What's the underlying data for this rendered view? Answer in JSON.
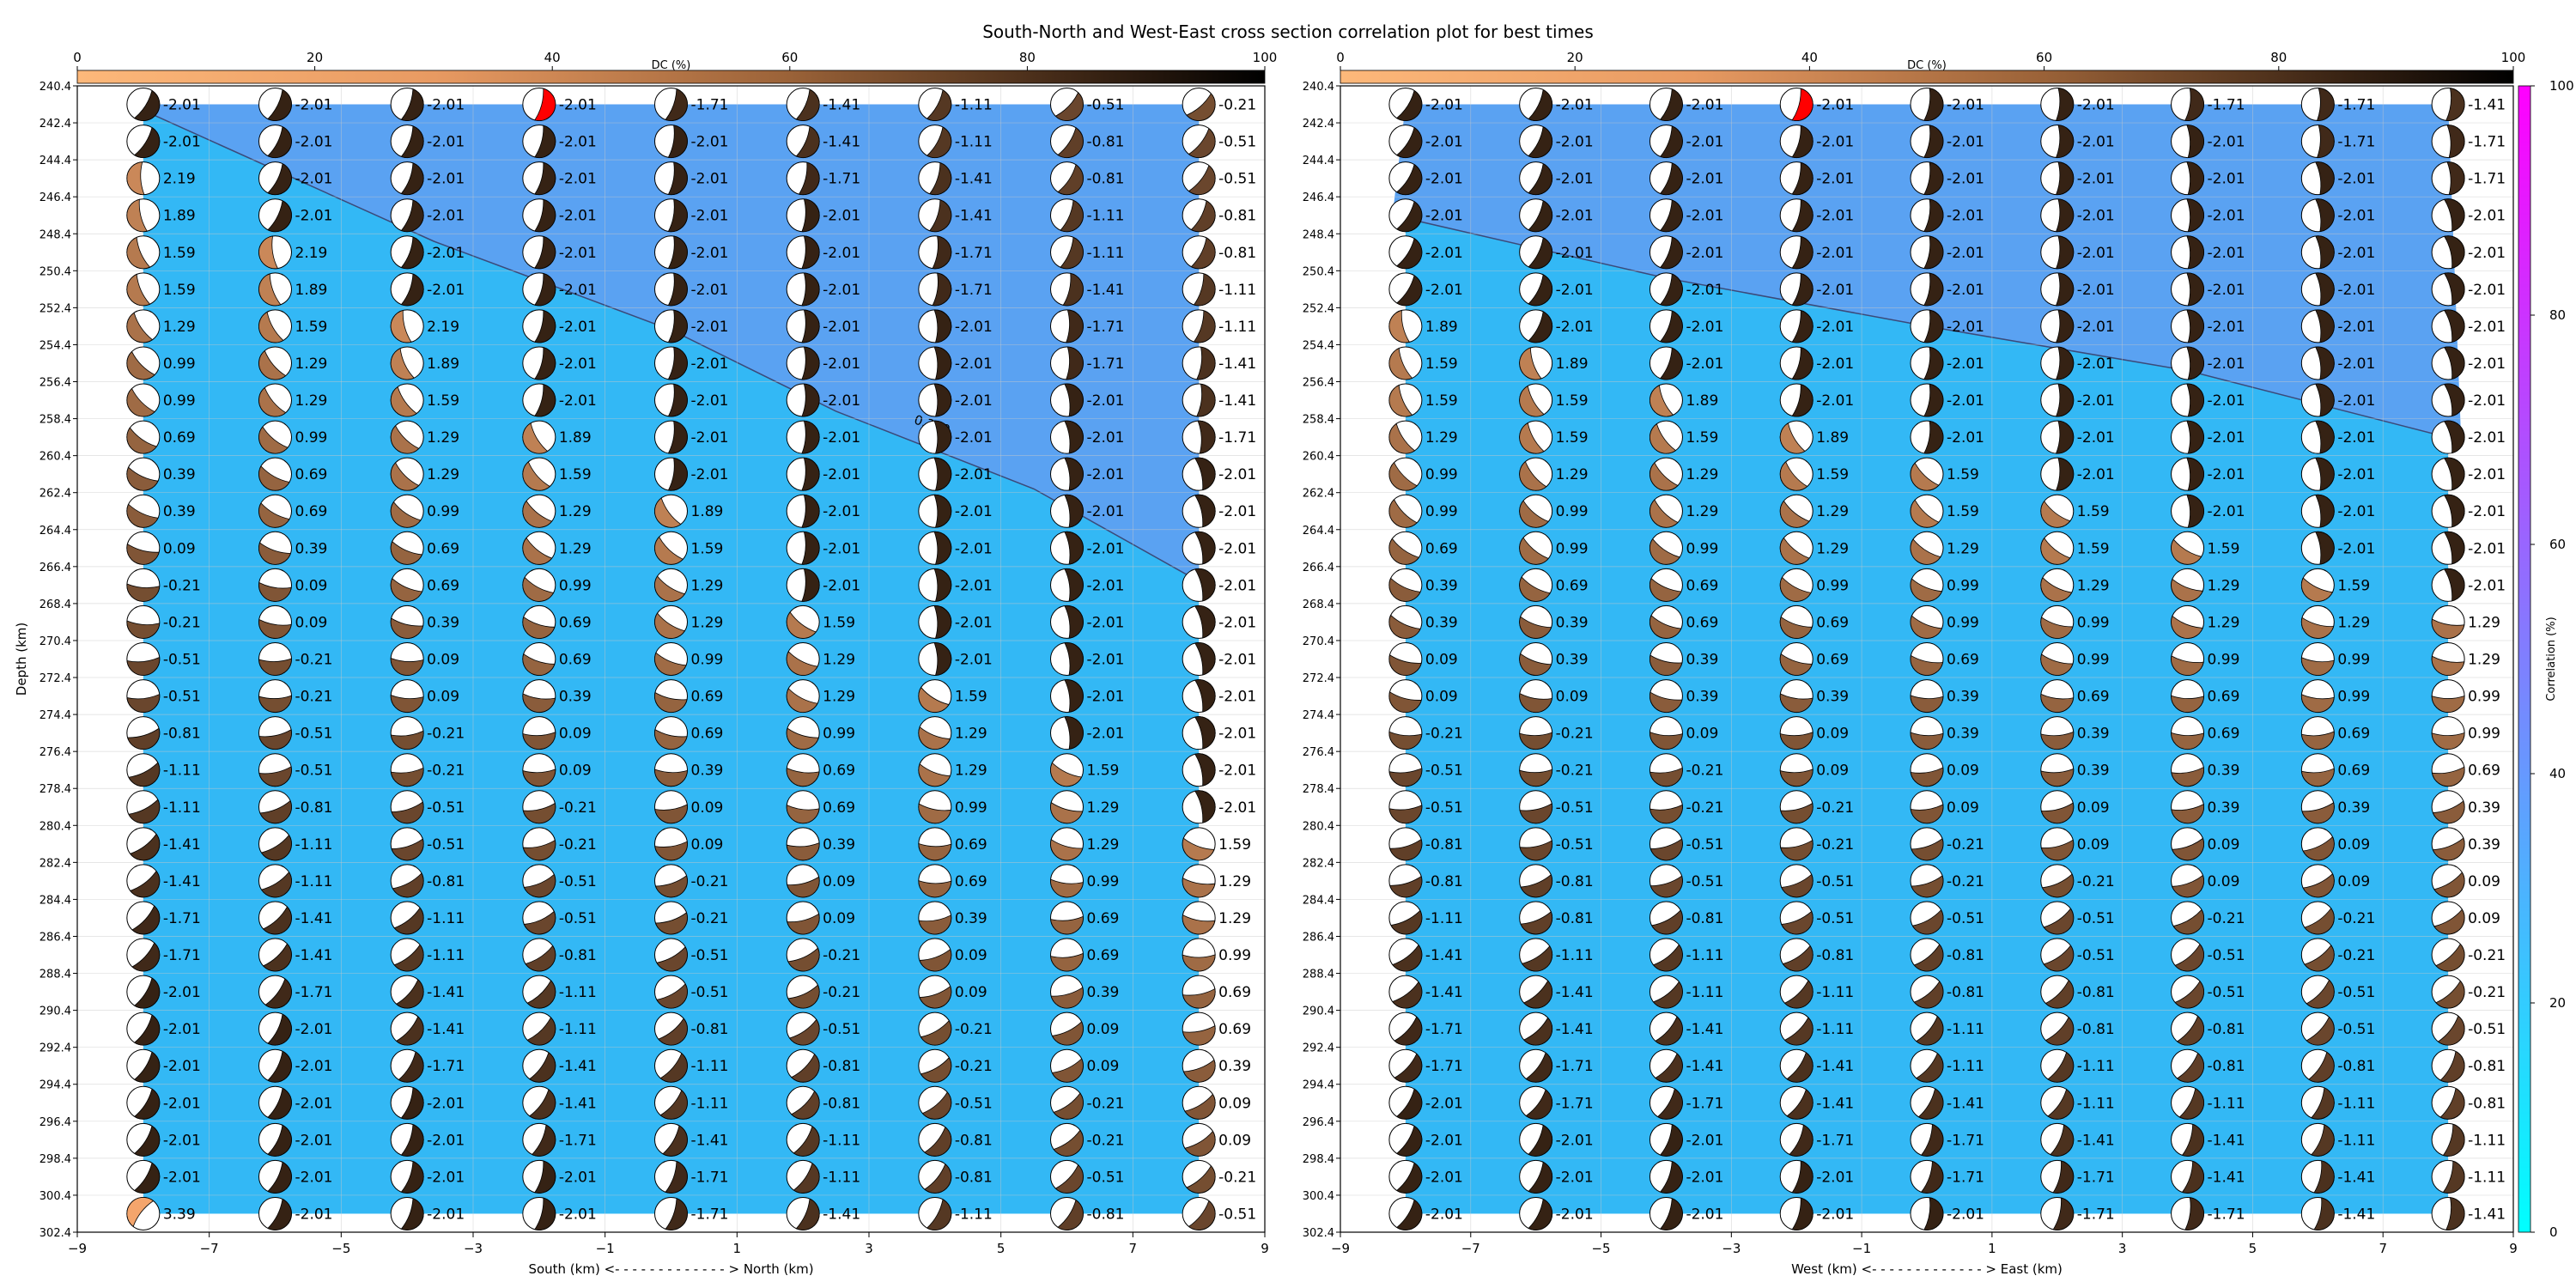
{
  "title": "South-North and West-East cross section correlation plot for best times",
  "colors": {
    "background_low": "#33b8f5",
    "background_high": "#5aa2f2",
    "highlight_beachball": "#ff0000",
    "contour_line": "#3b4a7a"
  },
  "chart_data": [
    {
      "type": "heatmap",
      "panel": "south-north",
      "xlabel": "South (km) <- - - - - - - - - - - - - > North (km)",
      "ylabel": "Depth (km)",
      "xlim": [
        -9,
        9
      ],
      "ylim": [
        302.4,
        240.4
      ],
      "x_ticks": [
        "−9",
        "−7",
        "−5",
        "−3",
        "−1",
        "1",
        "3",
        "5",
        "7",
        "9"
      ],
      "dc_colorbar": {
        "label": "DC (%)",
        "ticks": [
          "0",
          "20",
          "40",
          "60",
          "80",
          "100"
        ]
      },
      "contour_label": "0.300",
      "contour_line": [
        [
          -8.2,
          241.4
        ],
        [
          -3.6,
          248.8
        ],
        [
          0,
          253.6
        ],
        [
          2.5,
          258.0
        ],
        [
          5.5,
          262.2
        ],
        [
          8.0,
          267.2
        ]
      ],
      "columns_x": [
        -8,
        -6,
        -4,
        -2,
        0,
        2,
        4,
        6,
        8
      ],
      "rows_depth": [
        241.4,
        243.4,
        245.4,
        247.4,
        249.4,
        251.4,
        253.4,
        255.4,
        257.4,
        259.4,
        261.4,
        263.4,
        265.4,
        267.4,
        269.4,
        271.4,
        273.4,
        275.4,
        277.4,
        279.4,
        281.4,
        283.4,
        285.4,
        287.4,
        289.4,
        291.4,
        293.4,
        295.4,
        297.4,
        299.4,
        301.4
      ],
      "best_cell": {
        "x": -2,
        "depth": 241.4,
        "value": "-2.01"
      },
      "values": [
        [
          "-2.01",
          "-2.01",
          "-2.01",
          "-2.01",
          "-1.71",
          "-1.41",
          "-1.11",
          "-0.51",
          "-0.21"
        ],
        [
          "-2.01",
          "-2.01",
          "-2.01",
          "-2.01",
          "-2.01",
          "-1.41",
          "-1.11",
          "-0.81",
          "-0.51"
        ],
        [
          "2.19",
          "-2.01",
          "-2.01",
          "-2.01",
          "-2.01",
          "-1.71",
          "-1.41",
          "-0.81",
          "-0.51"
        ],
        [
          "1.89",
          "-2.01",
          "-2.01",
          "-2.01",
          "-2.01",
          "-2.01",
          "-1.41",
          "-1.11",
          "-0.81"
        ],
        [
          "1.59",
          "2.19",
          "-2.01",
          "-2.01",
          "-2.01",
          "-2.01",
          "-1.71",
          "-1.11",
          "-0.81"
        ],
        [
          "1.59",
          "1.89",
          "-2.01",
          "-2.01",
          "-2.01",
          "-2.01",
          "-1.71",
          "-1.41",
          "-1.11"
        ],
        [
          "1.29",
          "1.59",
          "2.19",
          "-2.01",
          "-2.01",
          "-2.01",
          "-2.01",
          "-1.71",
          "-1.11"
        ],
        [
          "0.99",
          "1.29",
          "1.89",
          "-2.01",
          "-2.01",
          "-2.01",
          "-2.01",
          "-1.71",
          "-1.41"
        ],
        [
          "0.99",
          "1.29",
          "1.59",
          "-2.01",
          "-2.01",
          "-2.01",
          "-2.01",
          "-2.01",
          "-1.41"
        ],
        [
          "0.69",
          "0.99",
          "1.29",
          "1.89",
          "-2.01",
          "-2.01",
          "-2.01",
          "-2.01",
          "-1.71"
        ],
        [
          "0.39",
          "0.69",
          "1.29",
          "1.59",
          "-2.01",
          "-2.01",
          "-2.01",
          "-2.01",
          "-2.01"
        ],
        [
          "0.39",
          "0.69",
          "0.99",
          "1.29",
          "1.89",
          "-2.01",
          "-2.01",
          "-2.01",
          "-2.01"
        ],
        [
          "0.09",
          "0.39",
          "0.69",
          "1.29",
          "1.59",
          "-2.01",
          "-2.01",
          "-2.01",
          "-2.01"
        ],
        [
          "-0.21",
          "0.09",
          "0.69",
          "0.99",
          "1.29",
          "-2.01",
          "-2.01",
          "-2.01",
          "-2.01"
        ],
        [
          "-0.21",
          "0.09",
          "0.39",
          "0.69",
          "1.29",
          "1.59",
          "-2.01",
          "-2.01",
          "-2.01"
        ],
        [
          "-0.51",
          "-0.21",
          "0.09",
          "0.69",
          "0.99",
          "1.29",
          "-2.01",
          "-2.01",
          "-2.01"
        ],
        [
          "-0.51",
          "-0.21",
          "0.09",
          "0.39",
          "0.69",
          "1.29",
          "1.59",
          "-2.01",
          "-2.01"
        ],
        [
          "-0.81",
          "-0.51",
          "-0.21",
          "0.09",
          "0.69",
          "0.99",
          "1.29",
          "-2.01",
          "-2.01"
        ],
        [
          "-1.11",
          "-0.51",
          "-0.21",
          "0.09",
          "0.39",
          "0.69",
          "1.29",
          "1.59",
          "-2.01"
        ],
        [
          "-1.11",
          "-0.81",
          "-0.51",
          "-0.21",
          "0.09",
          "0.69",
          "0.99",
          "1.29",
          "-2.01"
        ],
        [
          "-1.41",
          "-1.11",
          "-0.51",
          "-0.21",
          "0.09",
          "0.39",
          "0.69",
          "1.29",
          "1.59"
        ],
        [
          "-1.41",
          "-1.11",
          "-0.81",
          "-0.51",
          "-0.21",
          "0.09",
          "0.69",
          "0.99",
          "1.29"
        ],
        [
          "-1.71",
          "-1.41",
          "-1.11",
          "-0.51",
          "-0.21",
          "0.09",
          "0.39",
          "0.69",
          "1.29"
        ],
        [
          "-1.71",
          "-1.41",
          "-1.11",
          "-0.81",
          "-0.51",
          "-0.21",
          "0.09",
          "0.69",
          "0.99"
        ],
        [
          "-2.01",
          "-1.71",
          "-1.41",
          "-1.11",
          "-0.51",
          "-0.21",
          "0.09",
          "0.39",
          "0.69"
        ],
        [
          "-2.01",
          "-2.01",
          "-1.41",
          "-1.11",
          "-0.81",
          "-0.51",
          "-0.21",
          "0.09",
          "0.69"
        ],
        [
          "-2.01",
          "-2.01",
          "-1.71",
          "-1.41",
          "-1.11",
          "-0.81",
          "-0.21",
          "0.09",
          "0.39"
        ],
        [
          "-2.01",
          "-2.01",
          "-2.01",
          "-1.41",
          "-1.11",
          "-0.81",
          "-0.51",
          "-0.21",
          "0.09"
        ],
        [
          "-2.01",
          "-2.01",
          "-2.01",
          "-1.71",
          "-1.41",
          "-1.11",
          "-0.81",
          "-0.21",
          "0.09"
        ],
        [
          "-2.01",
          "-2.01",
          "-2.01",
          "-2.01",
          "-1.71",
          "-1.11",
          "-0.81",
          "-0.51",
          "-0.21"
        ],
        [
          "3.39",
          "-2.01",
          "-2.01",
          "-2.01",
          "-1.71",
          "-1.41",
          "-1.11",
          "-0.81",
          "-0.51"
        ]
      ]
    },
    {
      "type": "heatmap",
      "panel": "west-east",
      "xlabel": "West (km) <- - - - - - - - - - - - - > East (km)",
      "ylabel": "",
      "xlim": [
        -9,
        9
      ],
      "ylim": [
        302.4,
        240.4
      ],
      "x_ticks": [
        "−9",
        "−7",
        "−5",
        "−3",
        "−1",
        "1",
        "3",
        "5",
        "7",
        "9"
      ],
      "dc_colorbar": {
        "label": "DC (%)",
        "ticks": [
          "0",
          "20",
          "40",
          "60",
          "80",
          "100"
        ]
      },
      "correlation_colorbar": {
        "label": "Correlation (%)",
        "ticks": [
          "0",
          "20",
          "40",
          "60",
          "80",
          "100"
        ],
        "range": [
          0,
          100
        ]
      },
      "contour_line": [
        [
          -8.2,
          247.4
        ],
        [
          -4,
          250.8
        ],
        [
          0,
          253.4
        ],
        [
          4,
          255.8
        ],
        [
          8.2,
          259.6
        ]
      ],
      "columns_x": [
        -8,
        -6,
        -4,
        -2,
        0,
        2,
        4,
        6,
        8
      ],
      "rows_depth": [
        241.4,
        243.4,
        245.4,
        247.4,
        249.4,
        251.4,
        253.4,
        255.4,
        257.4,
        259.4,
        261.4,
        263.4,
        265.4,
        267.4,
        269.4,
        271.4,
        273.4,
        275.4,
        277.4,
        279.4,
        281.4,
        283.4,
        285.4,
        287.4,
        289.4,
        291.4,
        293.4,
        295.4,
        297.4,
        299.4,
        301.4
      ],
      "best_cell": {
        "x": -2,
        "depth": 241.4,
        "value": "-2.01"
      },
      "values": [
        [
          "-2.01",
          "-2.01",
          "-2.01",
          "-2.01",
          "-2.01",
          "-2.01",
          "-1.71",
          "-1.71",
          "-1.41"
        ],
        [
          "-2.01",
          "-2.01",
          "-2.01",
          "-2.01",
          "-2.01",
          "-2.01",
          "-2.01",
          "-1.71",
          "-1.71"
        ],
        [
          "-2.01",
          "-2.01",
          "-2.01",
          "-2.01",
          "-2.01",
          "-2.01",
          "-2.01",
          "-2.01",
          "-1.71"
        ],
        [
          "-2.01",
          "-2.01",
          "-2.01",
          "-2.01",
          "-2.01",
          "-2.01",
          "-2.01",
          "-2.01",
          "-2.01"
        ],
        [
          "-2.01",
          "-2.01",
          "-2.01",
          "-2.01",
          "-2.01",
          "-2.01",
          "-2.01",
          "-2.01",
          "-2.01"
        ],
        [
          "-2.01",
          "-2.01",
          "-2.01",
          "-2.01",
          "-2.01",
          "-2.01",
          "-2.01",
          "-2.01",
          "-2.01"
        ],
        [
          "1.89",
          "-2.01",
          "-2.01",
          "-2.01",
          "-2.01",
          "-2.01",
          "-2.01",
          "-2.01",
          "-2.01"
        ],
        [
          "1.59",
          "1.89",
          "-2.01",
          "-2.01",
          "-2.01",
          "-2.01",
          "-2.01",
          "-2.01",
          "-2.01"
        ],
        [
          "1.59",
          "1.59",
          "1.89",
          "-2.01",
          "-2.01",
          "-2.01",
          "-2.01",
          "-2.01",
          "-2.01"
        ],
        [
          "1.29",
          "1.59",
          "1.59",
          "1.89",
          "-2.01",
          "-2.01",
          "-2.01",
          "-2.01",
          "-2.01"
        ],
        [
          "0.99",
          "1.29",
          "1.29",
          "1.59",
          "1.59",
          "-2.01",
          "-2.01",
          "-2.01",
          "-2.01"
        ],
        [
          "0.99",
          "0.99",
          "1.29",
          "1.29",
          "1.59",
          "1.59",
          "-2.01",
          "-2.01",
          "-2.01"
        ],
        [
          "0.69",
          "0.99",
          "0.99",
          "1.29",
          "1.29",
          "1.59",
          "1.59",
          "-2.01",
          "-2.01"
        ],
        [
          "0.39",
          "0.69",
          "0.69",
          "0.99",
          "0.99",
          "1.29",
          "1.29",
          "1.59",
          "-2.01"
        ],
        [
          "0.39",
          "0.39",
          "0.69",
          "0.69",
          "0.99",
          "0.99",
          "1.29",
          "1.29",
          "1.29"
        ],
        [
          "0.09",
          "0.39",
          "0.39",
          "0.69",
          "0.69",
          "0.99",
          "0.99",
          "0.99",
          "1.29"
        ],
        [
          "0.09",
          "0.09",
          "0.39",
          "0.39",
          "0.39",
          "0.69",
          "0.69",
          "0.99",
          "0.99"
        ],
        [
          "-0.21",
          "-0.21",
          "0.09",
          "0.09",
          "0.39",
          "0.39",
          "0.69",
          "0.69",
          "0.99"
        ],
        [
          "-0.51",
          "-0.21",
          "-0.21",
          "0.09",
          "0.09",
          "0.39",
          "0.39",
          "0.69",
          "0.69"
        ],
        [
          "-0.51",
          "-0.51",
          "-0.21",
          "-0.21",
          "0.09",
          "0.09",
          "0.39",
          "0.39",
          "0.39"
        ],
        [
          "-0.81",
          "-0.51",
          "-0.51",
          "-0.21",
          "-0.21",
          "0.09",
          "0.09",
          "0.09",
          "0.39"
        ],
        [
          "-0.81",
          "-0.81",
          "-0.51",
          "-0.51",
          "-0.21",
          "-0.21",
          "0.09",
          "0.09",
          "0.09"
        ],
        [
          "-1.11",
          "-0.81",
          "-0.81",
          "-0.51",
          "-0.51",
          "-0.51",
          "-0.21",
          "-0.21",
          "0.09"
        ],
        [
          "-1.41",
          "-1.11",
          "-1.11",
          "-0.81",
          "-0.81",
          "-0.51",
          "-0.51",
          "-0.21",
          "-0.21"
        ],
        [
          "-1.41",
          "-1.41",
          "-1.11",
          "-1.11",
          "-0.81",
          "-0.81",
          "-0.51",
          "-0.51",
          "-0.21"
        ],
        [
          "-1.71",
          "-1.41",
          "-1.41",
          "-1.11",
          "-1.11",
          "-0.81",
          "-0.81",
          "-0.51",
          "-0.51"
        ],
        [
          "-1.71",
          "-1.71",
          "-1.41",
          "-1.41",
          "-1.11",
          "-1.11",
          "-0.81",
          "-0.81",
          "-0.81"
        ],
        [
          "-2.01",
          "-1.71",
          "-1.71",
          "-1.41",
          "-1.41",
          "-1.11",
          "-1.11",
          "-1.11",
          "-0.81"
        ],
        [
          "-2.01",
          "-2.01",
          "-2.01",
          "-1.71",
          "-1.71",
          "-1.41",
          "-1.41",
          "-1.11",
          "-1.11"
        ],
        [
          "-2.01",
          "-2.01",
          "-2.01",
          "-2.01",
          "-1.71",
          "-1.71",
          "-1.41",
          "-1.41",
          "-1.11"
        ],
        [
          "-2.01",
          "-2.01",
          "-2.01",
          "-2.01",
          "-2.01",
          "-1.71",
          "-1.71",
          "-1.41",
          "-1.41"
        ]
      ]
    }
  ]
}
